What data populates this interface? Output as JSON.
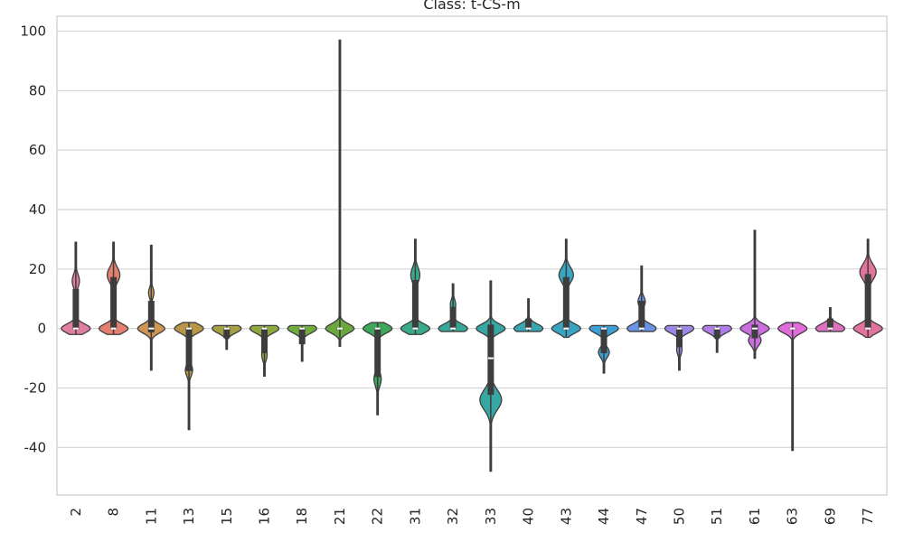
{
  "chart_data": {
    "type": "violin",
    "title": "Class: t-CS-m",
    "xlabel": "",
    "ylabel": "",
    "ylim": [
      -56,
      105
    ],
    "y_ticks": [
      -40,
      -20,
      0,
      20,
      40,
      60,
      80,
      100
    ],
    "grid": true,
    "categories": [
      "2",
      "8",
      "11",
      "13",
      "15",
      "16",
      "18",
      "21",
      "22",
      "31",
      "32",
      "33",
      "40",
      "43",
      "44",
      "47",
      "50",
      "51",
      "61",
      "63",
      "69",
      "77"
    ],
    "colors": [
      "#e07fa1",
      "#e58070",
      "#cf9555",
      "#b89748",
      "#a6a044",
      "#8ea840",
      "#6fad3c",
      "#6aa83e",
      "#3da75b",
      "#3aa98a",
      "#38a898",
      "#37a7a4",
      "#39a6b3",
      "#3aa5c2",
      "#3d9fd4",
      "#6a93e6",
      "#9b87e8",
      "#b07de6",
      "#cb6ee0",
      "#e06cdc",
      "#e070c1",
      "#e2739c"
    ],
    "violins": [
      {
        "category": "2",
        "min": -2,
        "q1": 0,
        "median": 0,
        "q3": 13,
        "max": 29,
        "peak": 0,
        "peak_halfwidth": 16,
        "secondary": {
          "y": 16,
          "halfwidth": 4
        }
      },
      {
        "category": "8",
        "min": -2,
        "q1": 0,
        "median": 0,
        "q3": 17,
        "max": 29,
        "peak": 0,
        "peak_halfwidth": 16,
        "secondary": {
          "y": 18,
          "halfwidth": 7
        }
      },
      {
        "category": "11",
        "min": -14,
        "q1": -1,
        "median": 0,
        "q3": 9,
        "max": 28,
        "peak": 0,
        "peak_halfwidth": 15,
        "secondary": {
          "y": 12,
          "halfwidth": 3
        }
      },
      {
        "category": "13",
        "min": -34,
        "q1": -14,
        "median": 0,
        "q3": 0,
        "max": 2,
        "peak": 0,
        "peak_halfwidth": 16,
        "secondary": {
          "y": -14,
          "halfwidth": 4
        }
      },
      {
        "category": "15",
        "min": -7,
        "q1": -3,
        "median": 0,
        "q3": 0,
        "max": 1,
        "peak": 0,
        "peak_halfwidth": 16,
        "secondary": null
      },
      {
        "category": "16",
        "min": -16,
        "q1": -8,
        "median": 0,
        "q3": 0,
        "max": 1,
        "peak": 0,
        "peak_halfwidth": 16,
        "secondary": {
          "y": -9,
          "halfwidth": 3
        }
      },
      {
        "category": "18",
        "min": -11,
        "q1": -5,
        "median": 0,
        "q3": 0,
        "max": 1,
        "peak": 0,
        "peak_halfwidth": 16,
        "secondary": null
      },
      {
        "category": "21",
        "min": -6,
        "q1": 0,
        "median": 0,
        "q3": 0,
        "max": 97,
        "peak": 0,
        "peak_halfwidth": 16,
        "secondary": null
      },
      {
        "category": "22",
        "min": -29,
        "q1": -16,
        "median": 0,
        "q3": 0,
        "max": 2,
        "peak": 0,
        "peak_halfwidth": 16,
        "secondary": {
          "y": -17,
          "halfwidth": 4
        }
      },
      {
        "category": "31",
        "min": -2,
        "q1": 0,
        "median": 0,
        "q3": 16,
        "max": 30,
        "peak": 0,
        "peak_halfwidth": 16,
        "secondary": {
          "y": 18,
          "halfwidth": 5
        }
      },
      {
        "category": "32",
        "min": -1,
        "q1": 0,
        "median": 0,
        "q3": 7,
        "max": 15,
        "peak": 0,
        "peak_halfwidth": 16,
        "secondary": {
          "y": 8,
          "halfwidth": 3
        }
      },
      {
        "category": "33",
        "min": -48,
        "q1": -22,
        "median": -10,
        "q3": 1,
        "max": 16,
        "peak": 0,
        "peak_halfwidth": 16,
        "secondary": {
          "y": -24,
          "halfwidth": 12
        }
      },
      {
        "category": "40",
        "min": -1,
        "q1": 0,
        "median": 0,
        "q3": 3,
        "max": 10,
        "peak": 0,
        "peak_halfwidth": 16,
        "secondary": null
      },
      {
        "category": "43",
        "min": -3,
        "q1": 0,
        "median": 0,
        "q3": 17,
        "max": 30,
        "peak": 0,
        "peak_halfwidth": 16,
        "secondary": {
          "y": 18,
          "halfwidth": 8
        }
      },
      {
        "category": "44",
        "min": -15,
        "q1": -8,
        "median": 0,
        "q3": 0,
        "max": 1,
        "peak": 0,
        "peak_halfwidth": 16,
        "secondary": {
          "y": -8,
          "halfwidth": 6
        }
      },
      {
        "category": "47",
        "min": -1,
        "q1": 0,
        "median": 0,
        "q3": 9,
        "max": 21,
        "peak": 0,
        "peak_halfwidth": 16,
        "secondary": {
          "y": 9,
          "halfwidth": 4
        }
      },
      {
        "category": "50",
        "min": -14,
        "q1": -6,
        "median": 0,
        "q3": 0,
        "max": 1,
        "peak": 0,
        "peak_halfwidth": 16,
        "secondary": {
          "y": -7,
          "halfwidth": 3
        }
      },
      {
        "category": "51",
        "min": -8,
        "q1": -3,
        "median": 0,
        "q3": 0,
        "max": 1,
        "peak": 0,
        "peak_halfwidth": 16,
        "secondary": null
      },
      {
        "category": "61",
        "min": -10,
        "q1": -3,
        "median": 0,
        "q3": 1,
        "max": 33,
        "peak": 0,
        "peak_halfwidth": 16,
        "secondary": {
          "y": -4,
          "halfwidth": 7
        }
      },
      {
        "category": "63",
        "min": -41,
        "q1": 0,
        "median": 0,
        "q3": 0,
        "max": 2,
        "peak": 0,
        "peak_halfwidth": 16,
        "secondary": null
      },
      {
        "category": "69",
        "min": -1,
        "q1": 0,
        "median": 0,
        "q3": 3,
        "max": 7,
        "peak": 0,
        "peak_halfwidth": 16,
        "secondary": null
      },
      {
        "category": "77",
        "min": -3,
        "q1": 0,
        "median": 0,
        "q3": 18,
        "max": 30,
        "peak": 0,
        "peak_halfwidth": 16,
        "secondary": {
          "y": 19,
          "halfwidth": 9
        }
      }
    ]
  }
}
